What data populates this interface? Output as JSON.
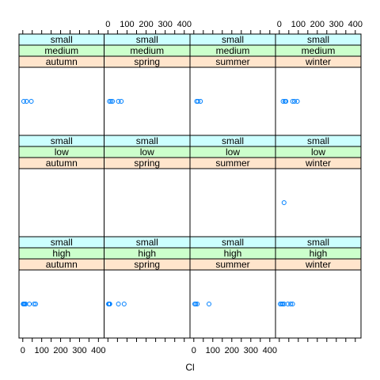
{
  "chart_data": {
    "type": "scatter",
    "xlabel": "Cl",
    "xlim": [
      -20,
      430
    ],
    "x_tick_labels": [
      "0",
      "100",
      "200",
      "300",
      "400"
    ],
    "x_ticks": [
      0,
      100,
      200,
      300,
      400
    ],
    "x_minor_ticks": [
      0,
      50,
      100,
      150,
      200,
      250,
      300,
      350,
      400
    ],
    "colors": {
      "point": "#0080ff",
      "strip_size": "#ccffff",
      "strip_level": "#ccffcc",
      "strip_season": "#ffe5cc",
      "frame": "#000000"
    },
    "panels": [
      {
        "row": 0,
        "col": 0,
        "size": "small",
        "level": "medium",
        "season": "autumn",
        "x": [
          5,
          20,
          45
        ]
      },
      {
        "row": 0,
        "col": 1,
        "size": "small",
        "level": "medium",
        "season": "spring",
        "x": [
          8,
          16,
          24,
          55,
          70
        ]
      },
      {
        "row": 0,
        "col": 2,
        "size": "small",
        "level": "medium",
        "season": "summer",
        "x": [
          15,
          22,
          35
        ]
      },
      {
        "row": 0,
        "col": 3,
        "size": "small",
        "level": "medium",
        "season": "winter",
        "x": [
          20,
          30,
          35,
          70,
          80,
          95
        ]
      },
      {
        "row": 1,
        "col": 0,
        "size": "small",
        "level": "low",
        "season": "autumn",
        "x": []
      },
      {
        "row": 1,
        "col": 1,
        "size": "small",
        "level": "low",
        "season": "spring",
        "x": []
      },
      {
        "row": 1,
        "col": 2,
        "size": "small",
        "level": "low",
        "season": "summer",
        "x": []
      },
      {
        "row": 1,
        "col": 3,
        "size": "small",
        "level": "low",
        "season": "winter",
        "x": [
          25
        ]
      },
      {
        "row": 2,
        "col": 0,
        "size": "small",
        "level": "high",
        "season": "autumn",
        "x": [
          2,
          6,
          10,
          15,
          35,
          60,
          68
        ]
      },
      {
        "row": 2,
        "col": 1,
        "size": "small",
        "level": "high",
        "season": "spring",
        "x": [
          3,
          6,
          8,
          10,
          55,
          85
        ]
      },
      {
        "row": 2,
        "col": 2,
        "size": "small",
        "level": "high",
        "season": "summer",
        "x": [
          5,
          10,
          18,
          80
        ]
      },
      {
        "row": 2,
        "col": 3,
        "size": "small",
        "level": "high",
        "season": "winter",
        "x": [
          5,
          12,
          18,
          25,
          45,
          60,
          70
        ]
      }
    ]
  }
}
